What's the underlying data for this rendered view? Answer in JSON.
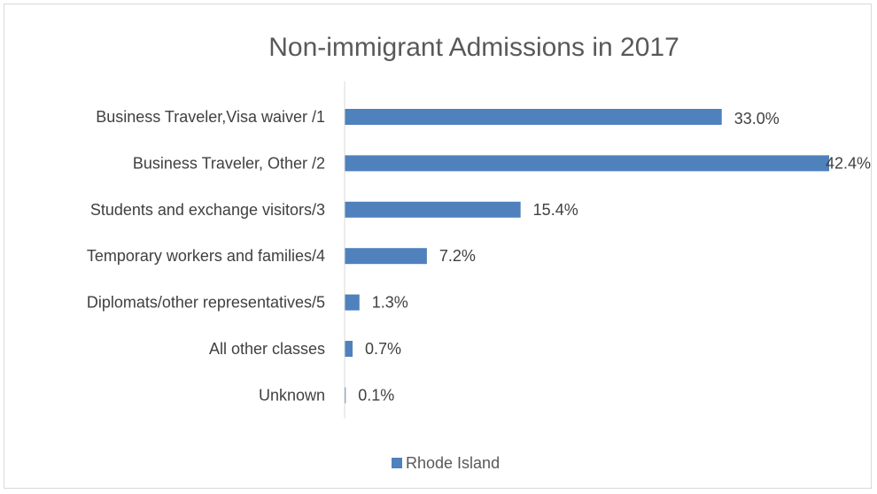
{
  "chart_data": {
    "type": "bar",
    "orientation": "horizontal",
    "title": "Non-immigrant Admissions in 2017",
    "categories": [
      "Business Traveler,Visa waiver /1",
      "Business Traveler, Other /2",
      "Students and exchange visitors/3",
      "Temporary workers and families/4",
      "Diplomats/other representatives/5",
      "All other classes",
      "Unknown"
    ],
    "series": [
      {
        "name": "Rhode Island",
        "values": [
          33.0,
          42.4,
          15.4,
          7.2,
          1.3,
          0.7,
          0.1
        ],
        "labels": [
          "33.0%",
          "42.4%",
          "15.4%",
          "7.2%",
          "1.3%",
          "0.7%",
          "0.1%"
        ],
        "color": "#4f81bd"
      }
    ],
    "xlim": [
      0,
      42.4
    ],
    "grid": false,
    "legend": "bottom"
  }
}
